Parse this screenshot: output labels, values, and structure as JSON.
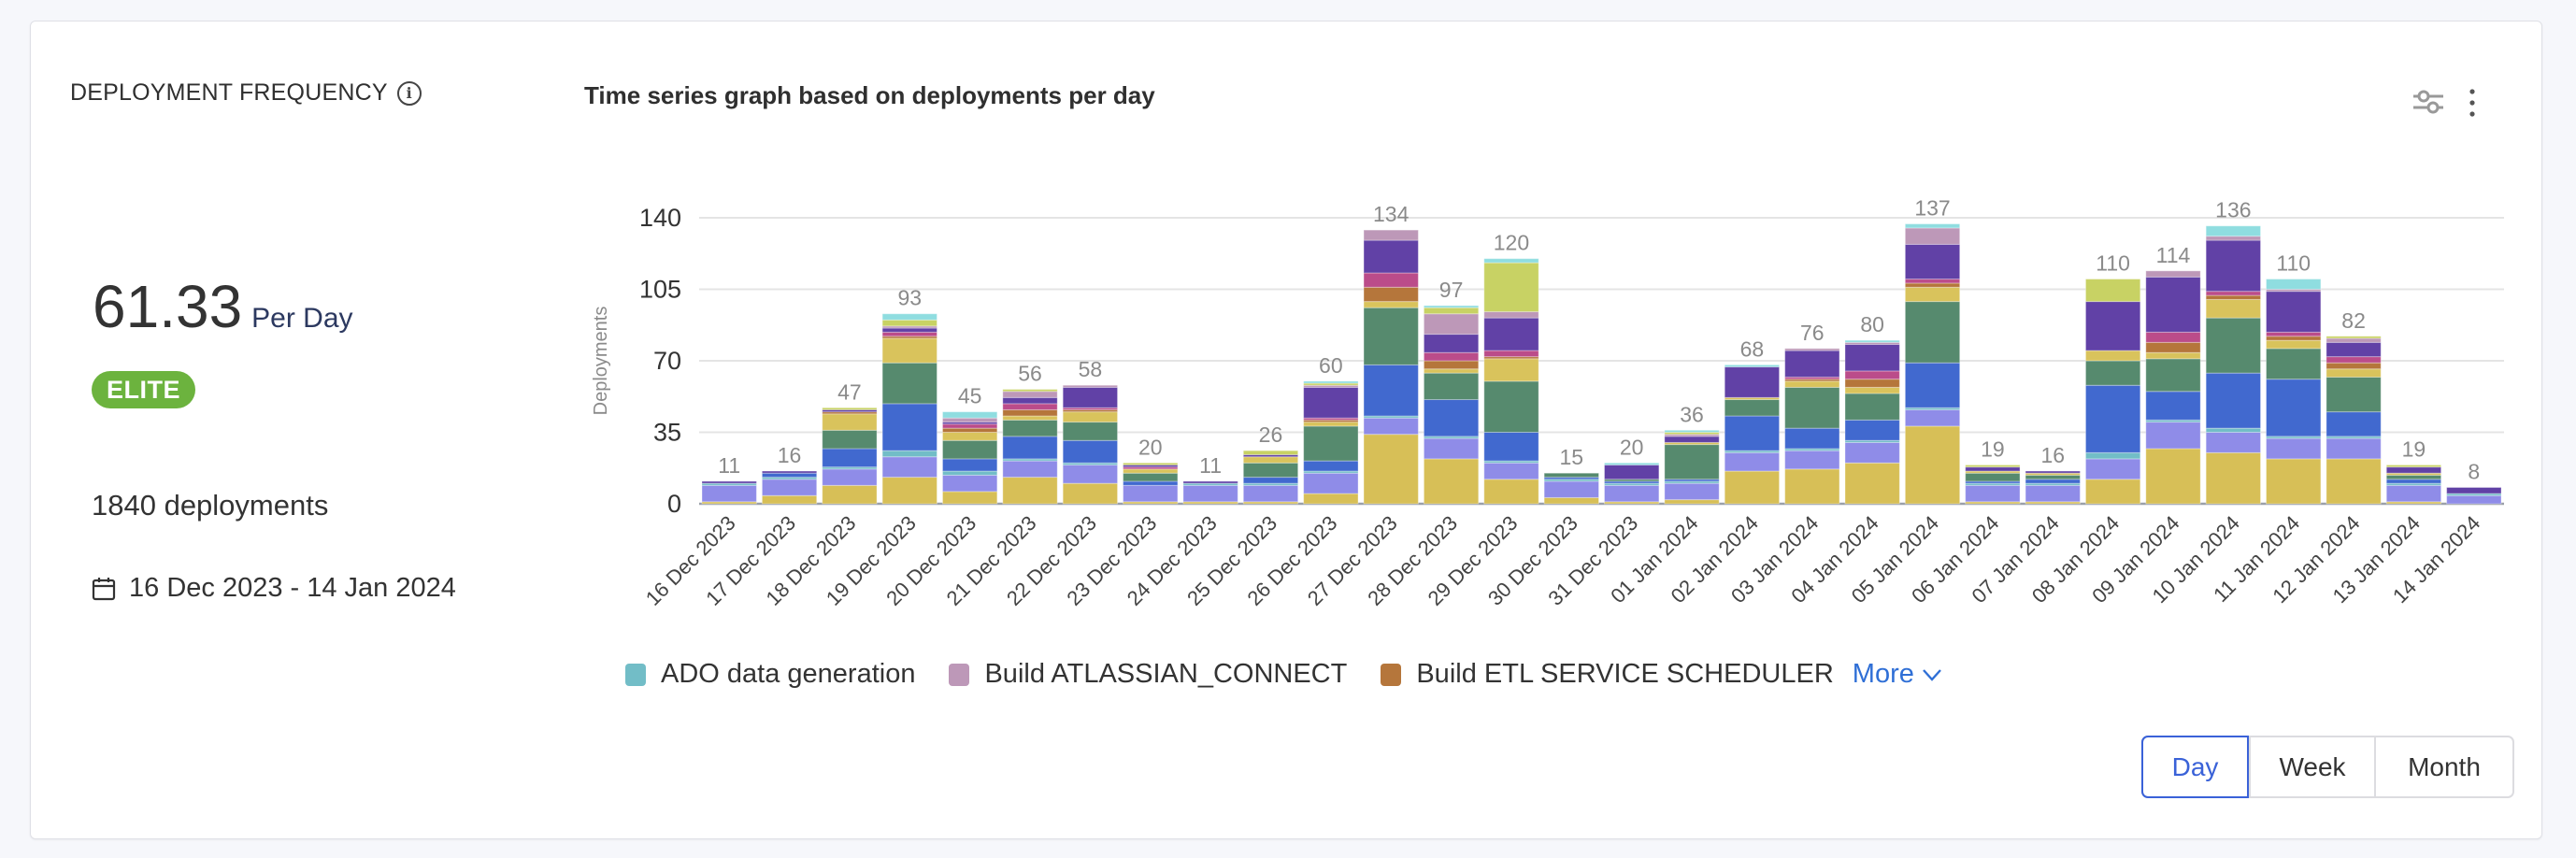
{
  "metric": {
    "title": "DEPLOYMENT FREQUENCY",
    "info_icon": "info-circle-icon",
    "value": "61.33",
    "unit": "Per Day",
    "badge": "ELITE",
    "badge_color": "#6cb33e",
    "deployments": "1840 deployments",
    "date_range": "16 Dec 2023 - 14 Jan 2024",
    "date_icon": "calendar-icon"
  },
  "header": {
    "chart_title": "Time series graph based on deployments per day",
    "filter_icon": "sliders-icon",
    "menu_icon": "more-vertical-icon"
  },
  "legend": {
    "items": [
      {
        "label": "ADO data generation",
        "color": "#72bdc7"
      },
      {
        "label": "Build ATLASSIAN_CONNECT",
        "color": "#bd98b8"
      },
      {
        "label": "Build ETL SERVICE SCHEDULER",
        "color": "#b5763b"
      }
    ],
    "more_label": "More",
    "more_icon": "chevron-down-icon"
  },
  "granularity": {
    "options": [
      "Day",
      "Week",
      "Month"
    ],
    "selected": "Day"
  },
  "chart_data": {
    "type": "bar",
    "stacked": true,
    "ylabel": "Deployments",
    "xlabel": "",
    "ylim": [
      0,
      140
    ],
    "yticks": [
      0,
      35,
      70,
      105,
      140
    ],
    "grid": true,
    "legend_position": "bottom",
    "categories": [
      "16 Dec 2023",
      "17 Dec 2023",
      "18 Dec 2023",
      "19 Dec 2023",
      "20 Dec 2023",
      "21 Dec 2023",
      "22 Dec 2023",
      "23 Dec 2023",
      "24 Dec 2023",
      "25 Dec 2023",
      "26 Dec 2023",
      "27 Dec 2023",
      "28 Dec 2023",
      "29 Dec 2023",
      "30 Dec 2023",
      "31 Dec 2023",
      "01 Jan 2024",
      "02 Jan 2024",
      "03 Jan 2024",
      "04 Jan 2024",
      "05 Jan 2024",
      "06 Jan 2024",
      "07 Jan 2024",
      "08 Jan 2024",
      "09 Jan 2024",
      "10 Jan 2024",
      "11 Jan 2024",
      "12 Jan 2024",
      "13 Jan 2024",
      "14 Jan 2024"
    ],
    "totals": [
      11,
      16,
      47,
      93,
      45,
      56,
      58,
      20,
      11,
      26,
      60,
      134,
      97,
      120,
      15,
      20,
      36,
      68,
      76,
      80,
      137,
      19,
      16,
      110,
      114,
      136,
      110,
      82,
      19,
      8
    ],
    "series": [
      {
        "color": "#d7bf57",
        "values": [
          1,
          4,
          9,
          13,
          6,
          13,
          10,
          1,
          1,
          1,
          5,
          34,
          22,
          12,
          3,
          1,
          2,
          16,
          17,
          20,
          38,
          1,
          1,
          12,
          27,
          25,
          22,
          22,
          1,
          0
        ]
      },
      {
        "color": "#8f8ce8",
        "values": [
          8,
          8,
          8,
          10,
          8,
          8,
          9,
          8,
          8,
          8,
          10,
          8,
          10,
          8,
          8,
          8,
          8,
          9,
          9,
          10,
          8,
          8,
          8,
          10,
          13,
          10,
          10,
          10,
          8,
          4
        ]
      },
      {
        "name": "ADO data generation",
        "color": "#72bdc7",
        "values": [
          1,
          1,
          1,
          3,
          2,
          1,
          1,
          0,
          1,
          1,
          1,
          1,
          1,
          1,
          1,
          1,
          1,
          1,
          1,
          1,
          1,
          1,
          1,
          3,
          1,
          2,
          1,
          1,
          1,
          1
        ]
      },
      {
        "color": "#4169cf",
        "values": [
          0,
          2,
          9,
          23,
          6,
          11,
          11,
          2,
          0,
          3,
          5,
          25,
          18,
          14,
          1,
          1,
          1,
          17,
          10,
          10,
          22,
          1,
          2,
          33,
          14,
          27,
          28,
          12,
          2,
          0
        ]
      },
      {
        "color": "#568a6e",
        "values": [
          0,
          0,
          9,
          20,
          9,
          8,
          9,
          4,
          0,
          7,
          17,
          28,
          13,
          25,
          2,
          1,
          17,
          8,
          20,
          13,
          30,
          4,
          2,
          12,
          16,
          27,
          15,
          17,
          2,
          0
        ]
      },
      {
        "color": "#d9c35c",
        "values": [
          0,
          0,
          8,
          12,
          4,
          2,
          5,
          2,
          0,
          3,
          2,
          3,
          2,
          11,
          0,
          0,
          1,
          1,
          3,
          3,
          7,
          1,
          1,
          5,
          3,
          9,
          4,
          4,
          1,
          0
        ]
      },
      {
        "name": "Build ETL SERVICE SCHEDULER",
        "color": "#b5763b",
        "values": [
          0,
          0,
          1,
          1,
          2,
          3,
          1,
          0,
          0,
          0,
          1,
          7,
          4,
          1,
          0,
          0,
          0,
          0,
          1,
          4,
          2,
          0,
          0,
          0,
          5,
          2,
          2,
          3,
          0,
          0
        ]
      },
      {
        "color": "#bb4c8a",
        "values": [
          0,
          0,
          0,
          2,
          2,
          3,
          1,
          1,
          0,
          0,
          1,
          7,
          4,
          3,
          0,
          0,
          0,
          0,
          1,
          4,
          2,
          0,
          0,
          0,
          5,
          2,
          2,
          3,
          0,
          0
        ]
      },
      {
        "color": "#6141a6",
        "values": [
          1,
          1,
          1,
          2,
          1,
          3,
          10,
          1,
          1,
          1,
          15,
          16,
          9,
          16,
          0,
          7,
          3,
          15,
          13,
          13,
          17,
          2,
          1,
          24,
          27,
          25,
          20,
          7,
          3,
          3
        ]
      },
      {
        "name": "Build ATLASSIAN_CONNECT",
        "color": "#bd98b8",
        "values": [
          0,
          0,
          0,
          1,
          2,
          3,
          1,
          0,
          0,
          0,
          1,
          5,
          10,
          3,
          0,
          0,
          1,
          0,
          1,
          1,
          8,
          0,
          0,
          0,
          3,
          2,
          1,
          2,
          0,
          0
        ]
      },
      {
        "color": "#c8d264",
        "values": [
          0,
          0,
          1,
          3,
          0,
          1,
          0,
          1,
          0,
          2,
          1,
          0,
          3,
          24,
          0,
          0,
          1,
          0,
          0,
          0,
          0,
          1,
          0,
          11,
          0,
          0,
          0,
          1,
          1,
          0
        ]
      },
      {
        "color": "#8fdde0",
        "values": [
          0,
          0,
          0,
          3,
          3,
          0,
          0,
          0,
          0,
          0,
          1,
          0,
          1,
          2,
          0,
          1,
          1,
          1,
          0,
          1,
          2,
          0,
          0,
          0,
          0,
          5,
          5,
          0,
          0,
          0
        ]
      }
    ]
  }
}
